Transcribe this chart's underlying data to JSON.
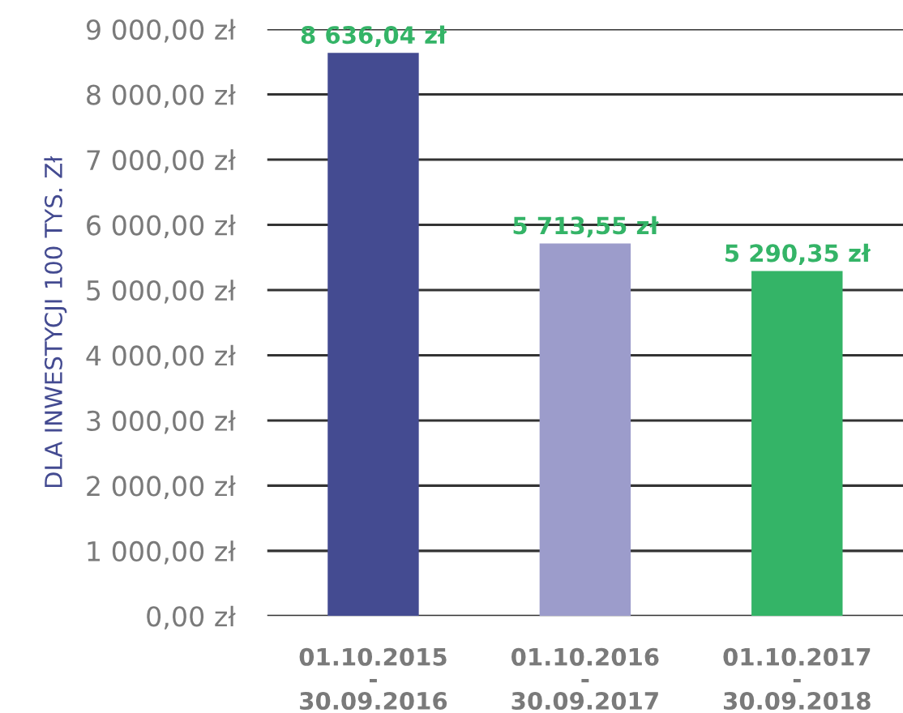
{
  "chart_data": {
    "type": "bar",
    "ylabel": "DLA INWESTYCJI 100 TYS. Zł",
    "categories": [
      "01.10.2015\n-\n30.09.2016",
      "01.10.2016\n-\n30.09.2017",
      "01.10.2017\n-\n30.09.2018"
    ],
    "values": [
      8636.04,
      5713.55,
      5290.35
    ],
    "colors": [
      "#444b91",
      "#9c9ccb",
      "#34b467"
    ],
    "value_labels": [
      "8 636,04 zł",
      "5 713,55 zł",
      "5 290,35 zł"
    ],
    "ylim": [
      0,
      9000
    ],
    "yticks": [
      {
        "value": 0,
        "label": "0,00 zł"
      },
      {
        "value": 1000,
        "label": "1 000,00 zł"
      },
      {
        "value": 2000,
        "label": "2 000,00 zł"
      },
      {
        "value": 3000,
        "label": "3 000,00 zł"
      },
      {
        "value": 4000,
        "label": "4 000,00 zł"
      },
      {
        "value": 5000,
        "label": "5 000,00 zł"
      },
      {
        "value": 6000,
        "label": "6 000,00 zł"
      },
      {
        "value": 7000,
        "label": "7 000,00 zł"
      },
      {
        "value": 8000,
        "label": "8 000,00 zł"
      },
      {
        "value": 9000,
        "label": "9 000,00 zł"
      }
    ],
    "grid": "y",
    "legend": false
  }
}
